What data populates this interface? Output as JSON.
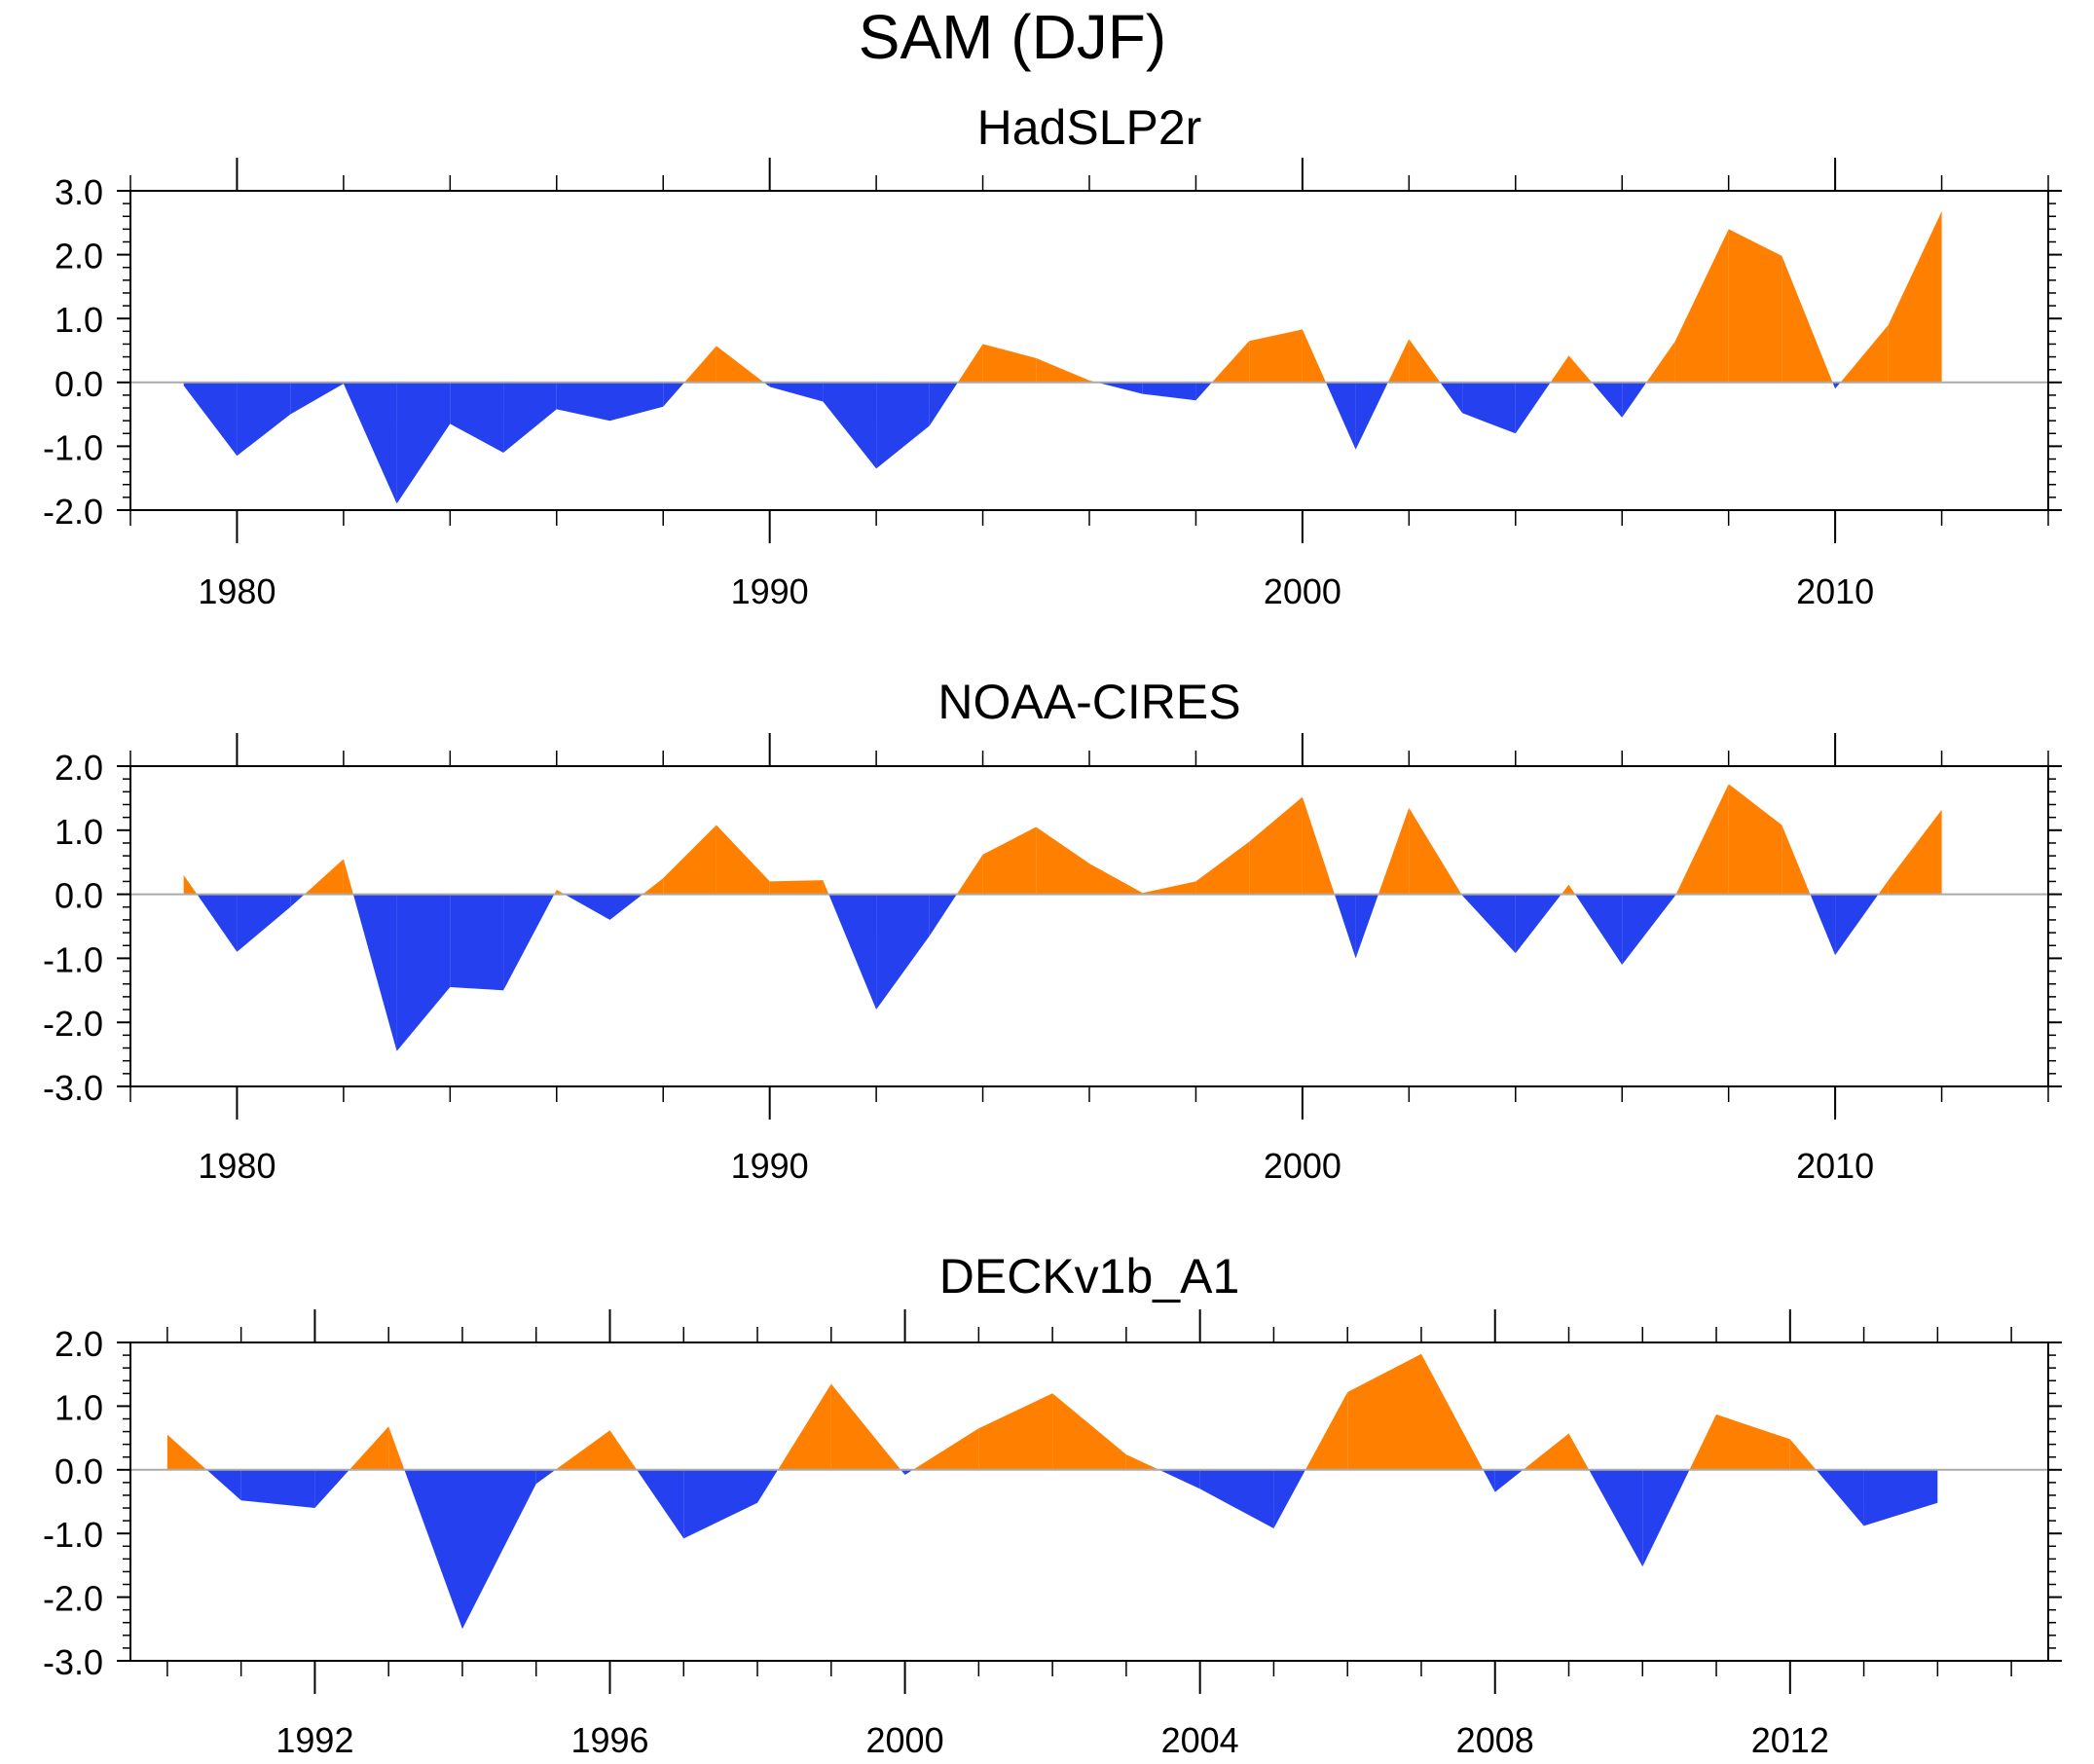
{
  "title": "SAM (DJF)",
  "colors": {
    "positive": "#ff8000",
    "negative": "#2540ef",
    "axis": "#000000",
    "zero_line": "#aaaaaa"
  },
  "chart_data": [
    {
      "type": "area",
      "title": "HadSLP2r",
      "xlim": [
        1978,
        2014
      ],
      "ylim": [
        -2,
        3
      ],
      "yticks": [
        -2,
        -1,
        0,
        1,
        2,
        3
      ],
      "ytick_labels": [
        "-2.0",
        "-1.0",
        "0.0",
        "1.0",
        "2.0",
        "3.0"
      ],
      "xticks": [
        1980,
        1990,
        2000,
        2010
      ],
      "xtick_labels": [
        "1980",
        "1990",
        "2000",
        "2010"
      ],
      "x": [
        1979,
        1980,
        1981,
        1982,
        1983,
        1984,
        1985,
        1986,
        1987,
        1988,
        1989,
        1990,
        1991,
        1992,
        1993,
        1994,
        1995,
        1996,
        1997,
        1998,
        1999,
        2000,
        2001,
        2002,
        2003,
        2004,
        2005,
        2006,
        2007,
        2008,
        2009,
        2010,
        2011,
        2012
      ],
      "values": [
        -0.05,
        -1.15,
        -0.5,
        -0.02,
        -1.9,
        -0.65,
        -1.1,
        -0.42,
        -0.6,
        -0.38,
        0.57,
        -0.07,
        -0.3,
        -1.35,
        -0.68,
        0.6,
        0.38,
        0.03,
        -0.18,
        -0.28,
        0.65,
        0.83,
        -1.05,
        0.68,
        -0.48,
        -0.8,
        0.42,
        -0.55,
        0.65,
        2.4,
        1.98,
        -0.1,
        0.9,
        2.68
      ]
    },
    {
      "type": "area",
      "title": "NOAA-CIRES",
      "xlim": [
        1978,
        2014
      ],
      "ylim": [
        -3,
        2
      ],
      "yticks": [
        -3,
        -2,
        -1,
        0,
        1,
        2
      ],
      "ytick_labels": [
        "-3.0",
        "-2.0",
        "-1.0",
        "0.0",
        "1.0",
        "2.0"
      ],
      "xticks": [
        1980,
        1990,
        2000,
        2010
      ],
      "xtick_labels": [
        "1980",
        "1990",
        "2000",
        "2010"
      ],
      "x": [
        1979,
        1980,
        1981,
        1982,
        1983,
        1984,
        1985,
        1986,
        1987,
        1988,
        1989,
        1990,
        1991,
        1992,
        1993,
        1994,
        1995,
        1996,
        1997,
        1998,
        1999,
        2000,
        2001,
        2002,
        2003,
        2004,
        2005,
        2006,
        2007,
        2008,
        2009,
        2010,
        2011,
        2012
      ],
      "values": [
        0.3,
        -0.9,
        -0.2,
        0.55,
        -2.45,
        -1.45,
        -1.5,
        0.07,
        -0.4,
        0.25,
        1.08,
        0.2,
        0.22,
        -1.8,
        -0.65,
        0.62,
        1.05,
        0.48,
        0.02,
        0.2,
        0.82,
        1.52,
        -1.0,
        1.35,
        -0.02,
        -0.92,
        0.15,
        -1.1,
        -0.02,
        1.72,
        1.08,
        -0.95,
        0.22,
        1.32
      ]
    },
    {
      "type": "area",
      "title": "DECKv1b_A1",
      "xlim": [
        1989.5,
        2015.5
      ],
      "ylim": [
        -3,
        2
      ],
      "yticks": [
        -3,
        -2,
        -1,
        0,
        1,
        2
      ],
      "ytick_labels": [
        "-3.0",
        "-2.0",
        "-1.0",
        "0.0",
        "1.0",
        "2.0"
      ],
      "xticks": [
        1992,
        1996,
        2000,
        2004,
        2008,
        2012
      ],
      "xtick_labels": [
        "1992",
        "1996",
        "2000",
        "2004",
        "2008",
        "2012"
      ],
      "x": [
        1990,
        1991,
        1992,
        1993,
        1994,
        1995,
        1996,
        1997,
        1998,
        1999,
        2000,
        2001,
        2002,
        2003,
        2004,
        2005,
        2006,
        2007,
        2008,
        2009,
        2010,
        2011,
        2012,
        2013,
        2014
      ],
      "values": [
        0.55,
        -0.48,
        -0.6,
        0.68,
        -2.5,
        -0.22,
        0.62,
        -1.08,
        -0.52,
        1.35,
        -0.08,
        0.65,
        1.2,
        0.24,
        -0.3,
        -0.92,
        1.22,
        1.82,
        -0.35,
        0.57,
        -1.52,
        0.87,
        0.48,
        -0.88,
        -0.52
      ]
    }
  ]
}
